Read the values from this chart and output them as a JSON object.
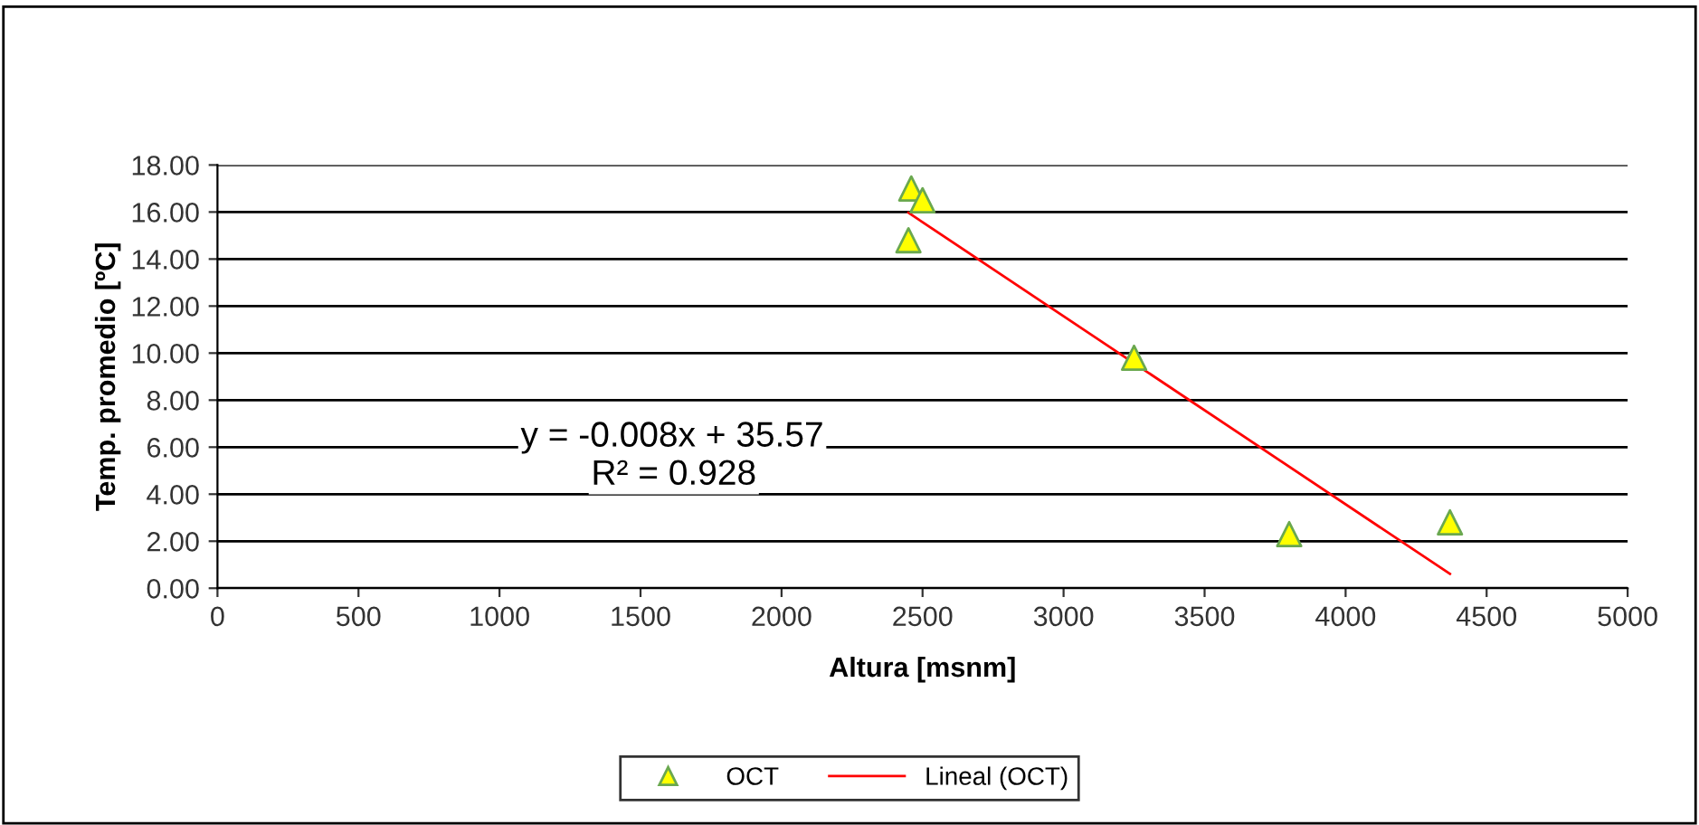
{
  "chart_data": {
    "type": "scatter",
    "xlabel": "Altura [msnm]",
    "ylabel": "Temp. promedio [ºC]",
    "xlim": [
      0,
      5000
    ],
    "xticks": [
      0,
      500,
      1000,
      1500,
      2000,
      2500,
      3000,
      3500,
      4000,
      4500,
      5000
    ],
    "ylim": [
      0,
      18
    ],
    "yticks": [
      {
        "value": 0,
        "label": "0.00"
      },
      {
        "value": 2,
        "label": "2.00"
      },
      {
        "value": 4,
        "label": "4.00"
      },
      {
        "value": 6,
        "label": "6.00"
      },
      {
        "value": 8,
        "label": "8.00"
      },
      {
        "value": 10,
        "label": "10.00"
      },
      {
        "value": 12,
        "label": "12.00"
      },
      {
        "value": 14,
        "label": "14.00"
      },
      {
        "value": 16,
        "label": "16.00"
      },
      {
        "value": 18,
        "label": "18.00"
      }
    ],
    "grid": "y",
    "legend": "bottom",
    "series": [
      {
        "name": "OCT",
        "marker": "triangle",
        "color": "#ffff00",
        "x": [
          2460,
          2500,
          2450,
          3250,
          3800,
          4370
        ],
        "values": [
          17.0,
          16.5,
          14.8,
          9.8,
          2.3,
          2.8
        ]
      },
      {
        "name": "Lineal (OCT)",
        "type": "line",
        "marker": "none",
        "color": "#ff0000",
        "x": [
          2450,
          4370
        ],
        "values": [
          15.97,
          0.61
        ]
      }
    ],
    "annotations": [
      "y = -0.008x + 35.57",
      "R² = 0.928"
    ]
  }
}
